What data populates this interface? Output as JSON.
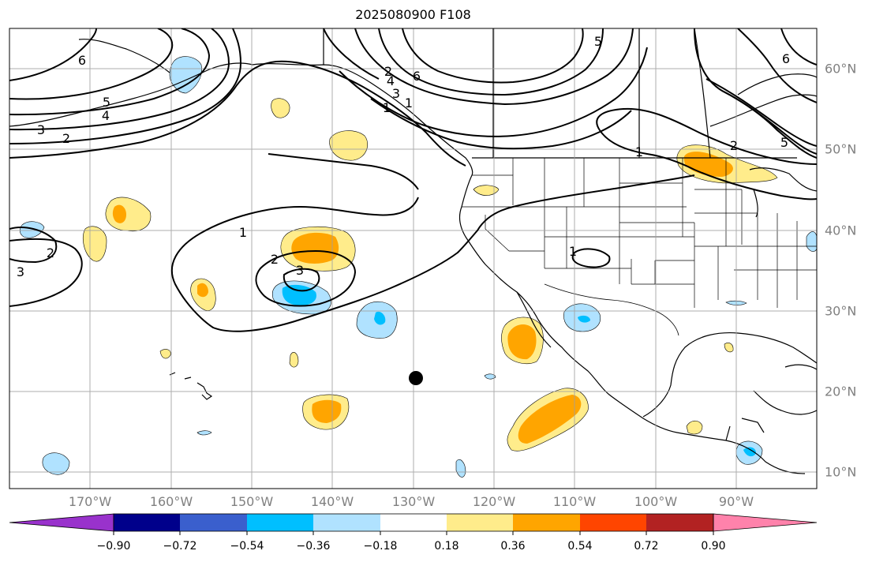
{
  "title": "2025080900 F108",
  "map": {
    "projection": "plate-carree",
    "lon_range": [
      -180,
      -80
    ],
    "lat_range": [
      8,
      65
    ],
    "lon_ticks": [
      "170°W",
      "160°W",
      "150°W",
      "140°W",
      "130°W",
      "120°W",
      "110°W",
      "100°W",
      "90°W"
    ],
    "lat_ticks": [
      "60°N",
      "50°N",
      "40°N",
      "30°N",
      "20°N",
      "10°N"
    ],
    "grid": true,
    "contour_line_labels": [
      "6",
      "5",
      "4",
      "3",
      "2",
      "1",
      "6",
      "5",
      "4",
      "3",
      "2",
      "1",
      "6",
      "5",
      "2",
      "1",
      "1",
      "2",
      "3",
      "1",
      "2",
      "3"
    ]
  },
  "colorbar": {
    "tick_labels": [
      "−0.90",
      "−0.72",
      "−0.54",
      "−0.36",
      "−0.18",
      "0.18",
      "0.36",
      "0.54",
      "0.72",
      "0.90"
    ],
    "colors": [
      "#9932cc",
      "#00008b",
      "#3a5fcd",
      "#00bfff",
      "#b0e2ff",
      "#ffffff",
      "#ffec8b",
      "#ffa500",
      "#ff4500",
      "#b22222",
      "#ff82ab"
    ],
    "extend": "both"
  },
  "marker": {
    "lon": -130,
    "lat": 21.5,
    "color": "#000000"
  }
}
